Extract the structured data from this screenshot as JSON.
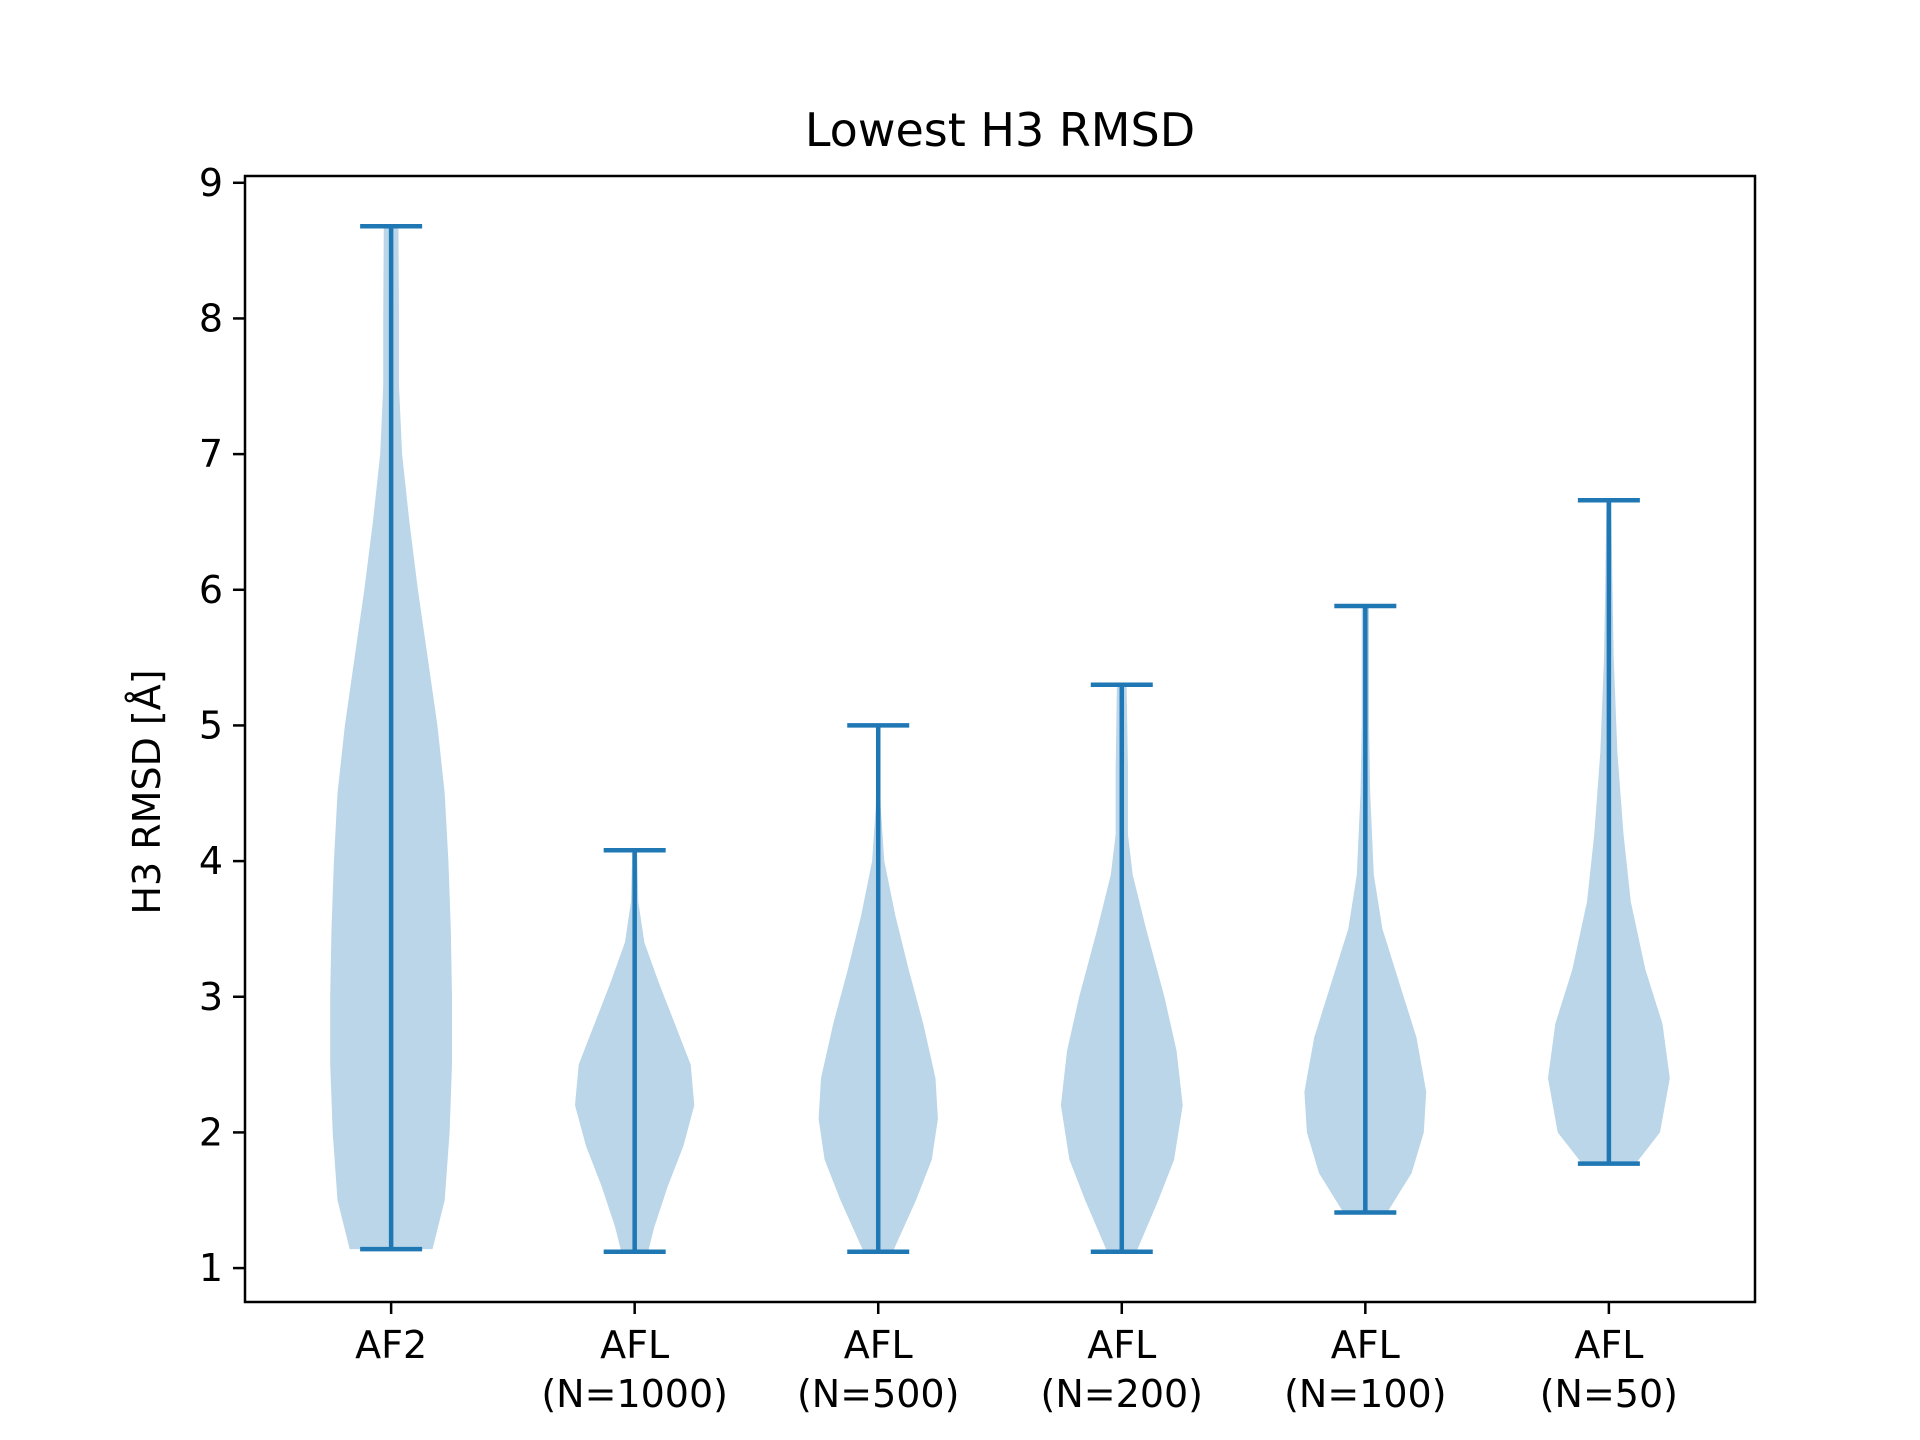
{
  "chart_data": {
    "type": "violin",
    "title": "Lowest H3 RMSD",
    "xlabel": "",
    "ylabel": "H3 RMSD [Å]",
    "ylim": [
      0.75,
      9.05
    ],
    "yticks": [
      "1",
      "2",
      "3",
      "4",
      "5",
      "6",
      "7",
      "8",
      "9"
    ],
    "grid": false,
    "colors": {
      "body": "#bad6e8",
      "lines": "#1f77b4"
    },
    "categories": [
      {
        "line1": "AF2",
        "line2": ""
      },
      {
        "line1": "AFL",
        "line2": "(N=1000)"
      },
      {
        "line1": "AFL",
        "line2": "(N=500)"
      },
      {
        "line1": "AFL",
        "line2": "(N=200)"
      },
      {
        "line1": "AFL",
        "line2": "(N=100)"
      },
      {
        "line1": "AFL",
        "line2": "(N=50)"
      }
    ],
    "series": [
      {
        "min": 1.14,
        "max": 8.68,
        "density": [
          [
            1.14,
            0.34
          ],
          [
            1.5,
            0.44
          ],
          [
            2.0,
            0.48
          ],
          [
            2.5,
            0.5
          ],
          [
            3.0,
            0.5
          ],
          [
            3.5,
            0.49
          ],
          [
            4.0,
            0.47
          ],
          [
            4.5,
            0.44
          ],
          [
            5.0,
            0.38
          ],
          [
            5.5,
            0.3
          ],
          [
            6.0,
            0.22
          ],
          [
            6.5,
            0.15
          ],
          [
            7.0,
            0.09
          ],
          [
            7.5,
            0.065
          ],
          [
            8.0,
            0.065
          ],
          [
            8.68,
            0.06
          ]
        ]
      },
      {
        "min": 1.12,
        "max": 4.08,
        "density": [
          [
            1.12,
            0.11
          ],
          [
            1.3,
            0.16
          ],
          [
            1.6,
            0.27
          ],
          [
            1.9,
            0.4
          ],
          [
            2.2,
            0.49
          ],
          [
            2.5,
            0.46
          ],
          [
            2.8,
            0.33
          ],
          [
            3.1,
            0.2
          ],
          [
            3.4,
            0.08
          ],
          [
            3.7,
            0.03
          ],
          [
            4.08,
            0.02
          ]
        ]
      },
      {
        "min": 1.12,
        "max": 5.0,
        "density": [
          [
            1.12,
            0.12
          ],
          [
            1.5,
            0.31
          ],
          [
            1.8,
            0.44
          ],
          [
            2.1,
            0.49
          ],
          [
            2.4,
            0.47
          ],
          [
            2.8,
            0.37
          ],
          [
            3.2,
            0.25
          ],
          [
            3.6,
            0.14
          ],
          [
            4.0,
            0.05
          ],
          [
            4.4,
            0.02
          ],
          [
            5.0,
            0.01
          ]
        ]
      },
      {
        "min": 1.12,
        "max": 5.3,
        "density": [
          [
            1.12,
            0.12
          ],
          [
            1.5,
            0.3
          ],
          [
            1.8,
            0.43
          ],
          [
            2.2,
            0.5
          ],
          [
            2.6,
            0.45
          ],
          [
            3.0,
            0.35
          ],
          [
            3.5,
            0.2
          ],
          [
            3.9,
            0.09
          ],
          [
            4.2,
            0.05
          ],
          [
            4.7,
            0.05
          ],
          [
            5.3,
            0.04
          ]
        ]
      },
      {
        "min": 1.41,
        "max": 5.88,
        "density": [
          [
            1.41,
            0.18
          ],
          [
            1.7,
            0.38
          ],
          [
            2.0,
            0.48
          ],
          [
            2.3,
            0.5
          ],
          [
            2.7,
            0.42
          ],
          [
            3.1,
            0.28
          ],
          [
            3.5,
            0.14
          ],
          [
            3.9,
            0.07
          ],
          [
            4.5,
            0.04
          ],
          [
            5.0,
            0.03
          ],
          [
            5.88,
            0.03
          ]
        ]
      },
      {
        "min": 1.77,
        "max": 6.66,
        "density": [
          [
            1.77,
            0.22
          ],
          [
            2.0,
            0.42
          ],
          [
            2.4,
            0.5
          ],
          [
            2.8,
            0.44
          ],
          [
            3.2,
            0.3
          ],
          [
            3.7,
            0.18
          ],
          [
            4.2,
            0.12
          ],
          [
            4.8,
            0.07
          ],
          [
            5.5,
            0.04
          ],
          [
            6.0,
            0.03
          ],
          [
            6.66,
            0.02
          ]
        ]
      }
    ]
  }
}
